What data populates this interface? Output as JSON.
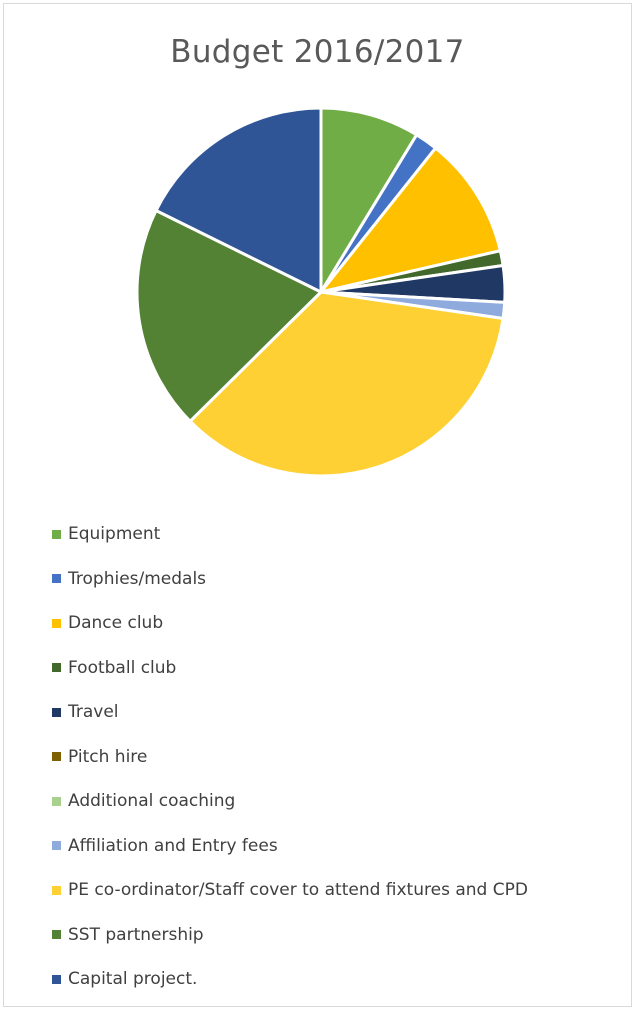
{
  "chart_data": {
    "type": "pie",
    "title": "Budget 2016/2017",
    "categories": [
      "Equipment",
      "Trophies/medals",
      "Dance club",
      "Football club",
      "Travel",
      "Pitch hire",
      "Additional coaching",
      "Affiliation and Entry fees",
      "PE co-ordinator/Staff cover to attend fixtures and CPD",
      "SST partnership",
      "Capital project."
    ],
    "values": [
      8.7,
      2.0,
      10.7,
      1.3,
      3.2,
      0,
      0,
      1.4,
      35.3,
      19.7,
      17.7
    ],
    "unit": "percent (estimated)",
    "colors": [
      "#70ad47",
      "#4472c4",
      "#ffc000",
      "#43682b",
      "#203864",
      "#7f6000",
      "#a9d18e",
      "#8faadc",
      "#ffd033",
      "#548235",
      "#2f5597"
    ],
    "legend_position": "bottom",
    "start_angle_deg": 0,
    "direction": "clockwise",
    "slice_border_color": "#ffffff"
  }
}
